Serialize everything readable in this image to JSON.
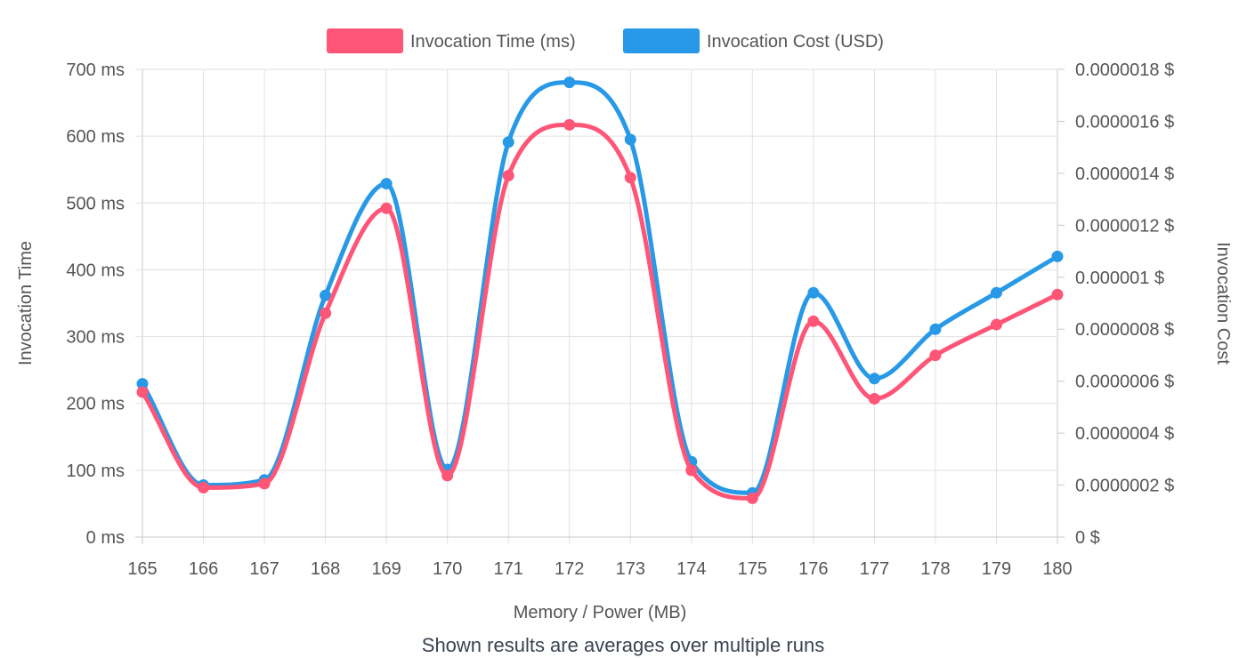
{
  "chart_data": {
    "type": "line",
    "categories": [
      "165",
      "166",
      "167",
      "168",
      "169",
      "170",
      "171",
      "172",
      "173",
      "174",
      "175",
      "176",
      "177",
      "178",
      "179",
      "180"
    ],
    "series": [
      {
        "name": "Invocation Time (ms)",
        "color": "#ff5577",
        "axis": "left",
        "values": [
          217,
          74,
          80,
          335,
          492,
          92,
          541,
          617,
          538,
          100,
          58,
          323,
          207,
          272,
          318,
          363
        ]
      },
      {
        "name": "Invocation Cost (USD)",
        "color": "#2799e6",
        "axis": "right",
        "values": [
          5.9e-07,
          2e-07,
          2.2e-07,
          9.3e-07,
          1.36e-06,
          2.6e-07,
          1.52e-06,
          1.75e-06,
          1.53e-06,
          2.9e-07,
          1.7e-07,
          9.4e-07,
          6.1e-07,
          8e-07,
          9.4e-07,
          1.08e-06
        ]
      }
    ],
    "xlabel": "Memory / Power (MB)",
    "ylabel_left": "Invocation Time",
    "ylabel_right": "Invocation Cost",
    "ylim_left": [
      0,
      700
    ],
    "ylim_right": [
      0,
      1.8e-06
    ],
    "yticks_left": [
      "0 ms",
      "100 ms",
      "200 ms",
      "300 ms",
      "400 ms",
      "500 ms",
      "600 ms",
      "700 ms"
    ],
    "yticks_right": [
      "0 $",
      "0.0000002 $",
      "0.0000004 $",
      "0.0000006 $",
      "0.0000008 $",
      "0.000001 $",
      "0.0000012 $",
      "0.0000014 $",
      "0.0000016 $",
      "0.0000018 $"
    ],
    "legend_position": "top",
    "grid": true,
    "caption": "Shown results are averages over multiple runs"
  }
}
